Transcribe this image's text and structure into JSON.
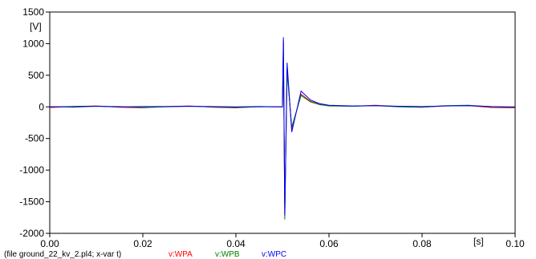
{
  "chart_data": {
    "type": "line",
    "y_unit_label": "[V]",
    "x_unit_label": "[s]",
    "xlim": [
      0,
      0.1
    ],
    "ylim": [
      -2000,
      1500
    ],
    "x_ticks": [
      "0.00",
      "0.02",
      "0.04",
      "0.06",
      "0.08",
      "0.10"
    ],
    "y_ticks": [
      "1500",
      "1000",
      "500",
      "0",
      "-500",
      "-1000",
      "-1500",
      "-2000"
    ],
    "grid": false,
    "legend_position": "bottom",
    "colors": {
      "WPA": "#ff0000",
      "WPB": "#008000",
      "WPC": "#0000ff"
    },
    "series": [
      {
        "name": "v:WPA",
        "color": "#ff0000",
        "x": [
          0,
          0.005,
          0.01,
          0.015,
          0.02,
          0.025,
          0.03,
          0.035,
          0.04,
          0.045,
          0.05,
          0.0502,
          0.0505,
          0.051,
          0.052,
          0.054,
          0.056,
          0.058,
          0.06,
          0.065,
          0.07,
          0.075,
          0.08,
          0.085,
          0.09,
          0.095,
          0.1
        ],
        "y": [
          -10,
          5,
          15,
          -5,
          -15,
          5,
          15,
          -5,
          -15,
          5,
          0,
          1050,
          -1700,
          600,
          -350,
          200,
          90,
          40,
          20,
          10,
          25,
          5,
          -5,
          15,
          20,
          -10,
          -15
        ]
      },
      {
        "name": "v:WPB",
        "color": "#008000",
        "x": [
          0,
          0.005,
          0.01,
          0.015,
          0.02,
          0.025,
          0.03,
          0.035,
          0.04,
          0.045,
          0.05,
          0.0502,
          0.0505,
          0.051,
          0.052,
          0.054,
          0.056,
          0.058,
          0.06,
          0.065,
          0.07,
          0.075,
          0.08,
          0.085,
          0.09,
          0.095,
          0.1
        ],
        "y": [
          5,
          -5,
          10,
          5,
          -10,
          0,
          10,
          0,
          -10,
          0,
          0,
          1000,
          -1780,
          550,
          -320,
          180,
          80,
          35,
          15,
          10,
          20,
          0,
          -5,
          20,
          25,
          0,
          -5
        ]
      },
      {
        "name": "v:WPC",
        "color": "#0000ff",
        "x": [
          0,
          0.005,
          0.01,
          0.015,
          0.02,
          0.025,
          0.03,
          0.035,
          0.04,
          0.045,
          0.05,
          0.0502,
          0.0505,
          0.051,
          0.052,
          0.054,
          0.056,
          0.058,
          0.06,
          0.065,
          0.07,
          0.075,
          0.08,
          0.085,
          0.09,
          0.095,
          0.1
        ],
        "y": [
          0,
          5,
          10,
          0,
          5,
          5,
          10,
          5,
          0,
          5,
          0,
          1100,
          -1720,
          700,
          -400,
          250,
          110,
          50,
          25,
          15,
          20,
          10,
          5,
          15,
          20,
          5,
          0
        ]
      }
    ]
  },
  "footer": {
    "file_text": "(file ground_22_kv_2.pl4; x-var t)",
    "legend": [
      "v:WPA",
      "v:WPB",
      "v:WPC"
    ]
  }
}
